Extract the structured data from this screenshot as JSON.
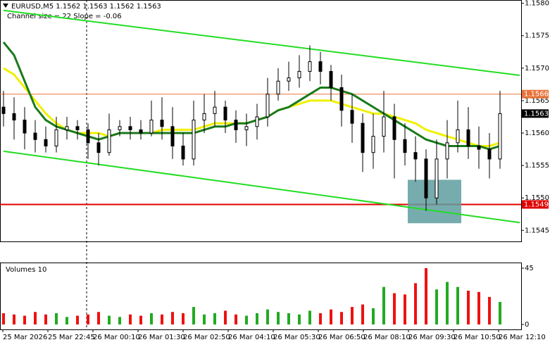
{
  "chart_data": {
    "type": "candlestick",
    "title": "EURUSD,M5  1.1562 1.1563 1.1562 1.1563",
    "subtitle": "Channel size = 22 Slope = -0.06",
    "ylim": [
      1.15433,
      1.15805
    ],
    "yticks": [
      {
        "value": 1.158,
        "label": "1.1580"
      },
      1.1575,
      {
        "value": 1.157,
        "label": "1.1570"
      },
      1.1565,
      {
        "value": 1.156,
        "label": "1.1560"
      },
      1.1555,
      {
        "value": 1.155,
        "label": "1.1550"
      },
      1.1545
    ],
    "x_labels": [
      "25 Mar 2026",
      "25 Mar 22:45",
      "26 Mar 00:10",
      "26 Mar 01:30",
      "26 Mar 02:50",
      "26 Mar 04:10",
      "26 Mar 05:30",
      "26 Mar 06:50",
      "26 Mar 08:10",
      "26 Mar 09:30",
      "26 Mar 10:50",
      "26 Mar 12:10"
    ],
    "open": [
      1.1564,
      1.1563,
      1.1562,
      1.156,
      1.1559,
      1.1558,
      1.15605,
      1.1561,
      1.15605,
      1.15585,
      1.1557,
      1.15605,
      1.1561,
      1.15605,
      1.156,
      1.1562,
      1.1561,
      1.1558,
      1.1556,
      1.1562,
      1.1563,
      1.1564,
      1.1562,
      1.15605,
      1.1561,
      1.15625,
      1.1566,
      1.1568,
      1.15685,
      1.15695,
      1.1571,
      1.15695,
      1.1567,
      1.15635,
      1.15615,
      1.1557,
      1.15595,
      1.15625,
      1.1559,
      1.1557,
      1.1556,
      1.155,
      1.1556,
      1.15585,
      1.15605,
      1.1558,
      1.15575,
      1.1556
    ],
    "high": [
      1.15665,
      1.15655,
      1.1564,
      1.1562,
      1.1561,
      1.15625,
      1.15625,
      1.1562,
      1.15615,
      1.156,
      1.1563,
      1.1562,
      1.15625,
      1.1562,
      1.1565,
      1.15655,
      1.1564,
      1.156,
      1.1565,
      1.1566,
      1.15665,
      1.1565,
      1.15635,
      1.1563,
      1.15645,
      1.15685,
      1.157,
      1.1571,
      1.1572,
      1.15735,
      1.15725,
      1.15705,
      1.1569,
      1.1566,
      1.1563,
      1.1563,
      1.15665,
      1.15645,
      1.15615,
      1.15595,
      1.15575,
      1.1559,
      1.1562,
      1.1565,
      1.1564,
      1.1561,
      1.156,
      1.15665
    ],
    "low": [
      1.1561,
      1.1559,
      1.15575,
      1.1557,
      1.1557,
      1.1557,
      1.1559,
      1.1559,
      1.1556,
      1.1555,
      1.15565,
      1.15595,
      1.1559,
      1.1559,
      1.15595,
      1.1559,
      1.1556,
      1.1555,
      1.1555,
      1.156,
      1.1561,
      1.156,
      1.15585,
      1.1558,
      1.1559,
      1.1561,
      1.1565,
      1.15665,
      1.1567,
      1.1568,
      1.15675,
      1.1565,
      1.1561,
      1.15585,
      1.1554,
      1.15545,
      1.1557,
      1.1553,
      1.1555,
      1.15525,
      1.1548,
      1.1549,
      1.1553,
      1.1557,
      1.1556,
      1.15545,
      1.1553,
      1.15545
    ],
    "close": [
      1.1563,
      1.1562,
      1.156,
      1.1559,
      1.1558,
      1.15605,
      1.1561,
      1.15605,
      1.15585,
      1.1557,
      1.15605,
      1.1561,
      1.15605,
      1.156,
      1.1562,
      1.1561,
      1.1558,
      1.1556,
      1.1562,
      1.1563,
      1.1564,
      1.1562,
      1.15605,
      1.1561,
      1.15625,
      1.1566,
      1.1568,
      1.15685,
      1.15695,
      1.1571,
      1.15695,
      1.1567,
      1.15635,
      1.15615,
      1.1557,
      1.15595,
      1.15625,
      1.1559,
      1.1557,
      1.1556,
      1.155,
      1.1556,
      1.15585,
      1.15605,
      1.1558,
      1.15575,
      1.1556,
      1.1563
    ],
    "candle_color": "#000000",
    "moving_averages": [
      {
        "color": "#f0f000",
        "values": [
          1.157,
          1.1569,
          1.1567,
          1.1565,
          1.1563,
          1.15615,
          1.15605,
          1.156,
          1.156,
          1.156,
          1.15595,
          1.156,
          1.156,
          1.156,
          1.156,
          1.15605,
          1.15605,
          1.15605,
          1.15605,
          1.1561,
          1.15615,
          1.15615,
          1.15615,
          1.15615,
          1.1562,
          1.15625,
          1.15635,
          1.1564,
          1.15645,
          1.1565,
          1.1565,
          1.1565,
          1.15645,
          1.1564,
          1.15635,
          1.1563,
          1.1563,
          1.15625,
          1.1562,
          1.15615,
          1.15605,
          1.156,
          1.15595,
          1.1559,
          1.15585,
          1.1558,
          1.1558,
          1.15585
        ]
      },
      {
        "color": "#1a7a1a",
        "values": [
          1.1574,
          1.1572,
          1.1568,
          1.1564,
          1.1562,
          1.1561,
          1.15605,
          1.156,
          1.15595,
          1.1559,
          1.15595,
          1.156,
          1.156,
          1.156,
          1.156,
          1.156,
          1.156,
          1.156,
          1.156,
          1.15605,
          1.1561,
          1.1561,
          1.15615,
          1.15615,
          1.1562,
          1.15625,
          1.15635,
          1.1564,
          1.1565,
          1.1566,
          1.1567,
          1.1567,
          1.15665,
          1.1566,
          1.1565,
          1.1564,
          1.1563,
          1.1562,
          1.1561,
          1.156,
          1.1559,
          1.15585,
          1.1558,
          1.1558,
          1.1558,
          1.1558,
          1.15575,
          1.1558
        ]
      }
    ],
    "channel_upper": [
      1.15789,
      1.15689
    ],
    "channel_lower": [
      1.15572,
      1.15462
    ],
    "channel_color": "#22dd22",
    "levels": [
      {
        "value": 1.1566,
        "color": "#e8743b"
      },
      {
        "value": 1.1549,
        "color": "#e00000"
      }
    ],
    "last_price": 1.1563,
    "highlight_box": {
      "top": 1.15528,
      "bottom": 1.15461,
      "color": "#5f9ea0"
    },
    "volume_title": "Volumes 10",
    "volumes": [
      9,
      8,
      7,
      10,
      8,
      9,
      6,
      7,
      8,
      10,
      7,
      6,
      8,
      7,
      9,
      8,
      10,
      9,
      14,
      8,
      9,
      11,
      8,
      7,
      9,
      12,
      10,
      9,
      8,
      11,
      9,
      12,
      10,
      14,
      16,
      13,
      30,
      25,
      24,
      33,
      45,
      28,
      34,
      30,
      27,
      26,
      22,
      18
    ],
    "volume_ylim": [
      0,
      49.5
    ],
    "volume_yticks": [
      45,
      0
    ],
    "volume_up_color": "#22aa22",
    "volume_down_color": "#ee1111"
  }
}
